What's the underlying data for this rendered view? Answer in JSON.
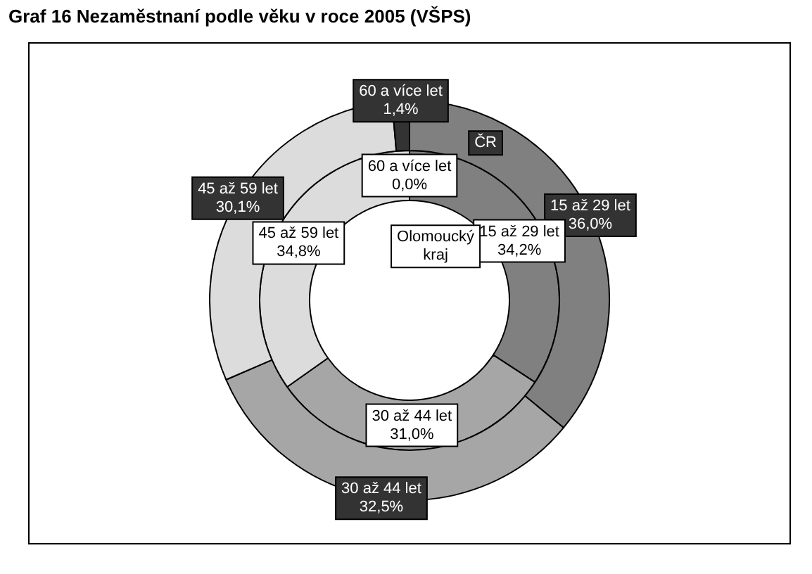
{
  "chart_data": {
    "type": "donut",
    "title": "Graf 16 Nezaměstnaní podle věku v roce 2005 (VŠPS)",
    "categories": [
      "15 až 29 let",
      "30 až 44 let",
      "45 až 59 let",
      "60 a více let"
    ],
    "colors": [
      "#808080",
      "#a6a6a6",
      "#dcdcdc",
      "#333333"
    ],
    "series": [
      {
        "name": "ČR",
        "values": [
          36.0,
          32.5,
          30.1,
          1.4
        ],
        "value_labels": [
          "36,0%",
          "32,5%",
          "30,1%",
          "1,4%"
        ]
      },
      {
        "name": "Olomoucký kraj",
        "values": [
          34.2,
          31.0,
          34.8,
          0.0
        ],
        "value_labels": [
          "34,2%",
          "31,0%",
          "34,8%",
          "0,0%"
        ]
      }
    ],
    "legend": false
  }
}
